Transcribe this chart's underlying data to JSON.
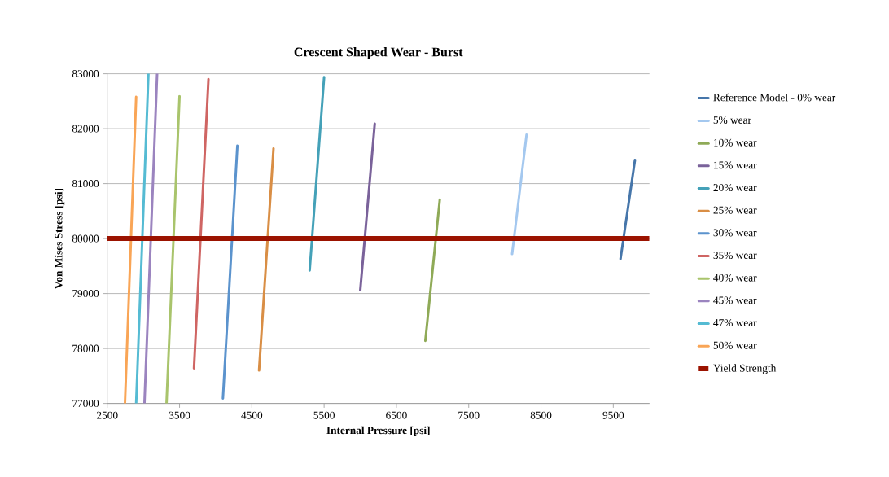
{
  "chart_data": {
    "type": "line",
    "title": "Crescent Shaped Wear - Burst",
    "xlabel": "Internal Pressure [psi]",
    "ylabel": "Von Mises Stress [psi]",
    "xlim": [
      2500,
      10000
    ],
    "xticks": [
      2500,
      3500,
      4500,
      5500,
      6500,
      7500,
      8500,
      9500
    ],
    "ylim": [
      77000,
      83000
    ],
    "yticks": [
      77000,
      78000,
      79000,
      80000,
      81000,
      82000,
      83000
    ],
    "grid": "y",
    "legend": "right",
    "marker": "none",
    "line_style": "solid",
    "series": [
      {
        "name": "Reference Model - 0% wear",
        "color": "#4676aa",
        "x": [
          9600,
          9800
        ],
        "values": [
          79630,
          81430
        ]
      },
      {
        "name": "5% wear",
        "color": "#a4c8ef",
        "x": [
          8100,
          8300
        ],
        "values": [
          79720,
          81890
        ]
      },
      {
        "name": "10% wear",
        "color": "#8faa57",
        "x": [
          6900,
          7100
        ],
        "values": [
          78140,
          80710
        ]
      },
      {
        "name": "15% wear",
        "color": "#7a629a",
        "x": [
          6000,
          6200
        ],
        "values": [
          79060,
          82090
        ]
      },
      {
        "name": "20% wear",
        "color": "#44a1b8",
        "x": [
          5300,
          5500
        ],
        "values": [
          79420,
          82940
        ]
      },
      {
        "name": "25% wear",
        "color": "#d98e45",
        "x": [
          4600,
          4800
        ],
        "values": [
          77600,
          81640
        ]
      },
      {
        "name": "30% wear",
        "color": "#5b93cd",
        "x": [
          4100,
          4300
        ],
        "values": [
          77090,
          81690
        ]
      },
      {
        "name": "35% wear",
        "color": "#cf6563",
        "x": [
          3700,
          3900
        ],
        "values": [
          77640,
          82900
        ]
      },
      {
        "name": "40% wear",
        "color": "#a9c46c",
        "x": [
          3320,
          3500
        ],
        "values": [
          77000,
          82590
        ]
      },
      {
        "name": "45% wear",
        "color": "#9b84bf",
        "x": [
          3015,
          3190
        ],
        "values": [
          77000,
          83000
        ]
      },
      {
        "name": "47% wear",
        "color": "#55bbd3",
        "x": [
          2900,
          3070
        ],
        "values": [
          77000,
          83000
        ]
      },
      {
        "name": "50% wear",
        "color": "#f9a556",
        "x": [
          2745,
          2900
        ],
        "values": [
          77000,
          82580
        ]
      }
    ],
    "ref_lines": [
      {
        "axis": "y",
        "value": 80000,
        "label": "Yield Strength",
        "color": "#9b1300"
      }
    ]
  }
}
